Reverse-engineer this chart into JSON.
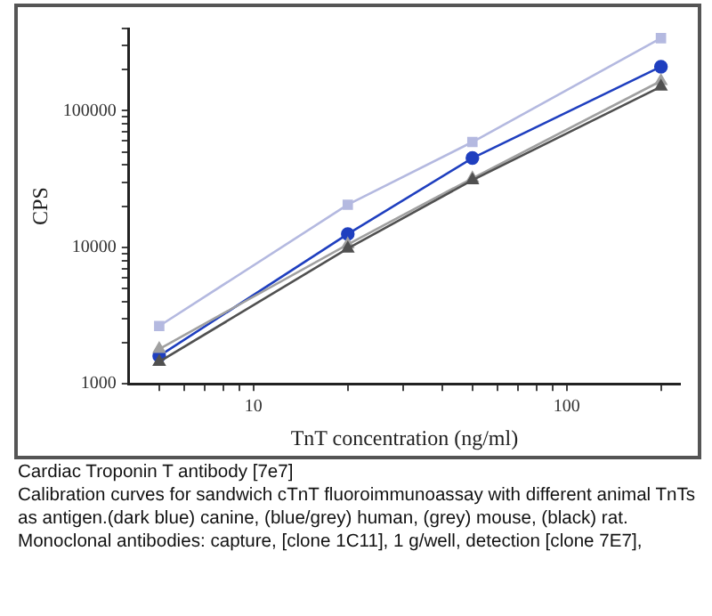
{
  "chart_data": {
    "type": "line",
    "title": "Cardiac Troponin T antibody [7e7]",
    "xlabel": "TnT concentration (ng/ml)",
    "ylabel": "CPS",
    "x": [
      5,
      20,
      50,
      200
    ],
    "series": [
      {
        "color": "#b4b9e0",
        "values": [
          2650,
          20500,
          59000,
          340000
        ],
        "marker": "square"
      },
      {
        "color": "#1f3fbf",
        "values": [
          1600,
          12500,
          45000,
          210000
        ],
        "marker": "circle"
      },
      {
        "color": "#a0a0a0",
        "values": [
          1800,
          10500,
          32000,
          165000
        ],
        "marker": "triangle"
      },
      {
        "color": "#505050",
        "values": [
          1450,
          9800,
          31000,
          150000
        ],
        "marker": "triangle"
      }
    ],
    "log": "xy",
    "grid": false,
    "legend": false,
    "line_style": "solid",
    "xlim": [
      4,
      230
    ],
    "ylim": [
      1000,
      400000
    ],
    "xticks": [
      {
        "value": 5,
        "label": null
      },
      {
        "value": 6,
        "label": null
      },
      {
        "value": 7,
        "label": null
      },
      {
        "value": 8,
        "label": null
      },
      {
        "value": 9,
        "label": null
      },
      10,
      {
        "value": 20,
        "label": null
      },
      {
        "value": 30,
        "label": null
      },
      {
        "value": 40,
        "label": null
      },
      {
        "value": 50,
        "label": null
      },
      {
        "value": 60,
        "label": null
      },
      {
        "value": 70,
        "label": null
      },
      {
        "value": 80,
        "label": null
      },
      {
        "value": 90,
        "label": null
      },
      100,
      {
        "value": 200,
        "label": null
      }
    ],
    "yticks": [
      1000,
      {
        "value": 2000,
        "label": null
      },
      {
        "value": 3000,
        "label": null
      },
      {
        "value": 4000,
        "label": null
      },
      {
        "value": 5000,
        "label": null
      },
      {
        "value": 6000,
        "label": null
      },
      {
        "value": 7000,
        "label": null
      },
      {
        "value": 8000,
        "label": null
      },
      {
        "value": 9000,
        "label": null
      },
      10000,
      {
        "value": 20000,
        "label": null
      },
      {
        "value": 30000,
        "label": null
      },
      {
        "value": 40000,
        "label": null
      },
      {
        "value": 50000,
        "label": null
      },
      {
        "value": 60000,
        "label": null
      },
      {
        "value": 70000,
        "label": null
      },
      {
        "value": 80000,
        "label": null
      },
      {
        "value": 90000,
        "label": null
      },
      100000,
      {
        "value": 200000,
        "label": null
      },
      {
        "value": 300000,
        "label": null
      },
      {
        "value": 400000,
        "label": null
      }
    ],
    "annotations": [
      "Calibration curves for sandwich cTnT fluoroimmunoassay with different animal TnTs as antigen.(dark blue) canine, (blue/grey) human, (grey) mouse, (black) rat.",
      "Monoclonal antibodies: capture, [clone 1C11], 1 g/well, detection [clone 7E7],"
    ]
  }
}
